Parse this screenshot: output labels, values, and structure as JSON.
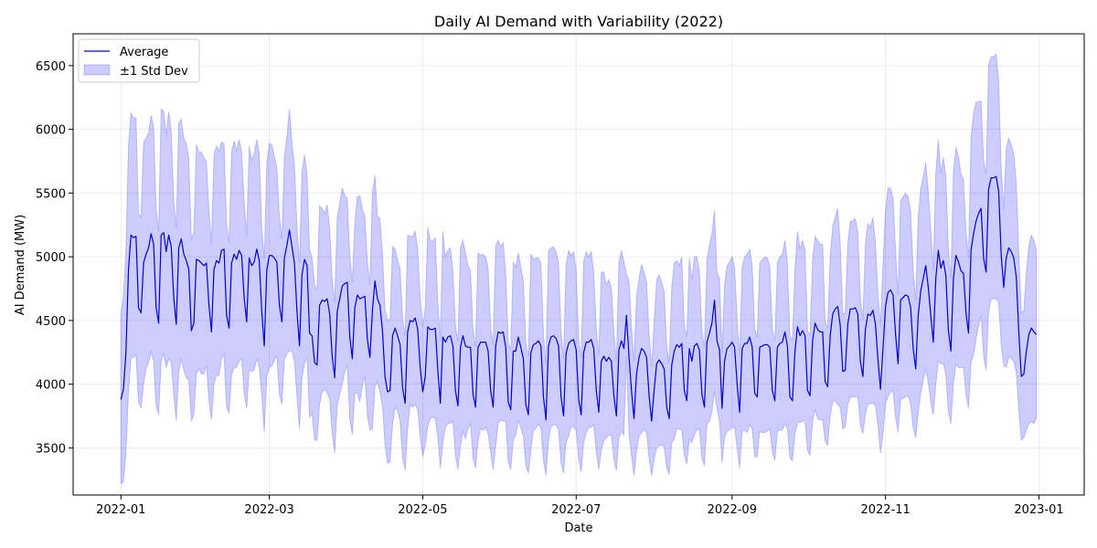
{
  "chart_data": {
    "type": "line",
    "title": "Daily AI Demand with Variability (2022)",
    "xlabel": "Date",
    "ylabel": "AI Demand (MW)",
    "x_start": "2022-01-01",
    "x_end": "2022-12-31",
    "xlim": [
      "2021-12-13",
      "2023-01-19"
    ],
    "ylim": [
      3130,
      6750
    ],
    "xticks": [
      "2022-01",
      "2022-03",
      "2022-05",
      "2022-07",
      "2022-09",
      "2022-11",
      "2023-01"
    ],
    "yticks": [
      3500,
      4000,
      4500,
      5000,
      5500,
      6000,
      6500
    ],
    "grid": true,
    "legend_position": "top-left",
    "series": [
      {
        "name": "Average",
        "kind": "line",
        "color": "#0000cc",
        "values": [
          3880,
          3960,
          4250,
          4900,
          5170,
          5150,
          5160,
          4600,
          4560,
          4950,
          5020,
          5070,
          5180,
          5100,
          4600,
          4480,
          5170,
          5190,
          5040,
          5170,
          5080,
          4680,
          4470,
          5070,
          5140,
          5020,
          4970,
          4900,
          4420,
          4480,
          4980,
          4970,
          4950,
          4930,
          4950,
          4620,
          4410,
          4900,
          4970,
          4950,
          5050,
          5060,
          4540,
          4440,
          4950,
          5020,
          4980,
          5050,
          5010,
          4680,
          4490,
          4990,
          4930,
          4960,
          5060,
          4970,
          4570,
          4300,
          4900,
          5010,
          5010,
          4990,
          4960,
          4620,
          4490,
          4990,
          5090,
          5210,
          5080,
          4950,
          4570,
          4300,
          4860,
          4980,
          4930,
          4400,
          4380,
          4170,
          4150,
          4620,
          4660,
          4650,
          4670,
          4550,
          4220,
          4050,
          4570,
          4670,
          4770,
          4790,
          4800,
          4370,
          4200,
          4600,
          4700,
          4670,
          4680,
          4690,
          4350,
          4210,
          4580,
          4810,
          4670,
          4620,
          4420,
          4060,
          3940,
          3950,
          4380,
          4440,
          4380,
          4310,
          3970,
          3850,
          4410,
          4500,
          4490,
          4520,
          4430,
          4130,
          3940,
          4060,
          4450,
          4430,
          4430,
          4440,
          4110,
          3850,
          4370,
          4330,
          4370,
          4380,
          4300,
          3950,
          3830,
          4290,
          4380,
          4300,
          4290,
          4290,
          3920,
          3820,
          4290,
          4330,
          4330,
          4330,
          4260,
          3950,
          3820,
          4300,
          4410,
          4400,
          4410,
          4290,
          3860,
          3800,
          4260,
          4260,
          4370,
          4290,
          4200,
          3840,
          3760,
          4250,
          4310,
          4320,
          4340,
          4300,
          3900,
          3720,
          4300,
          4370,
          4380,
          4360,
          4300,
          3900,
          3750,
          4240,
          4320,
          4340,
          4350,
          4270,
          3880,
          3760,
          4250,
          4330,
          4330,
          4350,
          4280,
          3950,
          3780,
          4180,
          4220,
          4180,
          4210,
          4180,
          3910,
          3750,
          4270,
          4340,
          4280,
          4540,
          4220,
          3950,
          3730,
          4080,
          4210,
          4280,
          4260,
          4210,
          3910,
          3710,
          3950,
          4160,
          4190,
          4160,
          4120,
          3820,
          3730,
          4150,
          4260,
          4310,
          4290,
          4320,
          3950,
          3870,
          4280,
          4180,
          4300,
          4320,
          4270,
          3920,
          3820,
          4330,
          4400,
          4480,
          4660,
          4340,
          4270,
          3810,
          4180,
          4280,
          4300,
          4330,
          4290,
          4000,
          3780,
          4280,
          4320,
          4320,
          4370,
          4290,
          3930,
          3900,
          4290,
          4300,
          4310,
          4310,
          4290,
          3950,
          3870,
          4290,
          4320,
          4330,
          4410,
          4300,
          3900,
          3870,
          4260,
          4450,
          4380,
          4420,
          4380,
          3950,
          3910,
          4340,
          4480,
          4430,
          4410,
          4410,
          4020,
          3980,
          4380,
          4550,
          4590,
          4610,
          4460,
          4100,
          4110,
          4470,
          4590,
          4590,
          4600,
          4550,
          4180,
          4060,
          4430,
          4550,
          4540,
          4580,
          4470,
          4190,
          3960,
          4280,
          4610,
          4720,
          4740,
          4700,
          4390,
          4160,
          4660,
          4680,
          4700,
          4690,
          4600,
          4280,
          4120,
          4540,
          4730,
          4830,
          4930,
          4760,
          4540,
          4330,
          4830,
          5050,
          4910,
          4970,
          4850,
          4420,
          4260,
          4830,
          5010,
          4960,
          4890,
          4870,
          4560,
          4400,
          5050,
          5180,
          5280,
          5340,
          5380,
          4990,
          4880,
          5530,
          5620,
          5620,
          5630,
          5510,
          5010,
          4760,
          4990,
          5070,
          5040,
          4990,
          4840,
          4410,
          4060,
          4080,
          4260,
          4390,
          4440,
          4410,
          4390
        ]
      },
      {
        "name": "±1 Std Dev",
        "kind": "band",
        "color": "#0000ff",
        "upper": [
          4550,
          4700,
          5050,
          5870,
          6130,
          6090,
          6090,
          5340,
          5310,
          5900,
          5930,
          5970,
          6110,
          6020,
          5370,
          5200,
          6160,
          6140,
          5950,
          6140,
          5990,
          5440,
          5230,
          6050,
          6080,
          5930,
          5890,
          5770,
          5130,
          5200,
          5880,
          5820,
          5820,
          5780,
          5750,
          5370,
          5100,
          5800,
          5870,
          5830,
          5900,
          5890,
          5260,
          5110,
          5830,
          5910,
          5830,
          5920,
          5820,
          5430,
          5170,
          5870,
          5760,
          5810,
          5920,
          5810,
          5230,
          4980,
          5740,
          5890,
          5880,
          5790,
          5700,
          5320,
          5140,
          5790,
          5940,
          6160,
          5900,
          5720,
          5240,
          4950,
          5670,
          5800,
          5650,
          5060,
          4990,
          4780,
          4740,
          5400,
          5380,
          5340,
          5410,
          5220,
          4830,
          4640,
          5310,
          5420,
          5540,
          5480,
          5460,
          5010,
          4800,
          5270,
          5470,
          5480,
          5370,
          5320,
          4950,
          4780,
          5510,
          5640,
          5320,
          5300,
          5010,
          4590,
          4500,
          4510,
          5080,
          5060,
          4970,
          4910,
          4520,
          4380,
          5170,
          5160,
          5160,
          5200,
          5060,
          4680,
          4450,
          4600,
          5230,
          5130,
          5120,
          5150,
          4640,
          4360,
          5200,
          5000,
          5050,
          5070,
          4890,
          4460,
          4330,
          5070,
          5130,
          5030,
          4930,
          4890,
          4420,
          4300,
          5030,
          5010,
          5020,
          5000,
          4910,
          4440,
          4310,
          5090,
          5130,
          5080,
          5110,
          4870,
          4330,
          4270,
          4960,
          4920,
          5030,
          4920,
          4810,
          4320,
          4220,
          5020,
          4980,
          4990,
          4990,
          4950,
          4400,
          4160,
          5050,
          5070,
          5080,
          5040,
          4960,
          4420,
          4200,
          4940,
          5050,
          5010,
          5040,
          4900,
          4350,
          4210,
          4960,
          5040,
          5000,
          5040,
          4880,
          4430,
          4230,
          4880,
          4880,
          4780,
          4820,
          4760,
          4410,
          4180,
          4960,
          5050,
          4960,
          4860,
          4820,
          4460,
          4180,
          4690,
          4830,
          4940,
          4880,
          4800,
          4400,
          4140,
          4490,
          4820,
          4860,
          4800,
          4730,
          4300,
          4170,
          4760,
          4950,
          4970,
          4930,
          5000,
          4460,
          4370,
          4990,
          4820,
          5000,
          5000,
          4890,
          4420,
          4280,
          4980,
          5090,
          5180,
          5370,
          4880,
          4830,
          4240,
          4780,
          4930,
          4960,
          5000,
          4920,
          4500,
          4220,
          4930,
          5000,
          5020,
          5060,
          4930,
          4430,
          4370,
          4950,
          4980,
          5000,
          4990,
          4930,
          4430,
          4340,
          4950,
          5000,
          5020,
          5130,
          4950,
          4380,
          4340,
          4910,
          5200,
          5060,
          5130,
          5050,
          4420,
          4380,
          4970,
          5160,
          5130,
          5100,
          5100,
          4490,
          4440,
          5010,
          5240,
          5310,
          5380,
          5100,
          4550,
          4560,
          5100,
          5280,
          5280,
          5300,
          5200,
          4680,
          4510,
          5100,
          5260,
          5230,
          5310,
          5110,
          4710,
          4460,
          4950,
          5370,
          5540,
          5540,
          5460,
          5040,
          4700,
          5440,
          5470,
          5500,
          5470,
          5360,
          4900,
          4660,
          5310,
          5530,
          5630,
          5740,
          5510,
          5220,
          4900,
          5660,
          5920,
          5660,
          5780,
          5630,
          5060,
          4830,
          5660,
          5860,
          5790,
          5650,
          5610,
          5200,
          4990,
          5930,
          6130,
          6210,
          6220,
          6220,
          5760,
          5650,
          6500,
          6570,
          6570,
          6590,
          6380,
          5710,
          5370,
          5850,
          5930,
          5880,
          5800,
          5590,
          5030,
          4560,
          4580,
          4880,
          5090,
          5170,
          5130,
          5050
        ],
        "lower": [
          3220,
          3230,
          3460,
          3930,
          4210,
          4210,
          4230,
          3860,
          3810,
          4000,
          4120,
          4170,
          4250,
          4180,
          3830,
          3760,
          4180,
          4240,
          4130,
          4200,
          4170,
          3920,
          3710,
          4090,
          4200,
          4110,
          4050,
          4030,
          3710,
          3760,
          4080,
          4120,
          4080,
          4080,
          4150,
          3870,
          3720,
          4000,
          4070,
          4070,
          4200,
          4230,
          3820,
          3770,
          4070,
          4130,
          4130,
          4180,
          4200,
          3930,
          3810,
          4110,
          4100,
          4110,
          4200,
          4130,
          3910,
          3620,
          4060,
          4130,
          4140,
          4190,
          4220,
          3920,
          3840,
          4190,
          4240,
          4260,
          4260,
          4180,
          3900,
          3650,
          4050,
          4160,
          4210,
          3740,
          3770,
          3560,
          3560,
          3840,
          3940,
          3960,
          3930,
          3880,
          3610,
          3460,
          3830,
          3920,
          4000,
          4100,
          4140,
          3730,
          3600,
          3930,
          3930,
          3860,
          3990,
          4060,
          3750,
          3640,
          3650,
          3980,
          4020,
          3940,
          3830,
          3530,
          3380,
          3390,
          3680,
          3820,
          3790,
          3710,
          3420,
          3320,
          3650,
          3840,
          3820,
          3840,
          3800,
          3580,
          3430,
          3520,
          3670,
          3730,
          3740,
          3730,
          3580,
          3340,
          3540,
          3660,
          3690,
          3690,
          3710,
          3440,
          3330,
          3510,
          3630,
          3570,
          3650,
          3690,
          3420,
          3340,
          3550,
          3650,
          3640,
          3660,
          3610,
          3460,
          3330,
          3510,
          3690,
          3720,
          3710,
          3710,
          3390,
          3330,
          3560,
          3600,
          3710,
          3660,
          3590,
          3360,
          3300,
          3480,
          3640,
          3650,
          3690,
          3650,
          3400,
          3280,
          3550,
          3670,
          3680,
          3680,
          3640,
          3380,
          3300,
          3540,
          3590,
          3670,
          3660,
          3640,
          3410,
          3310,
          3540,
          3620,
          3660,
          3660,
          3680,
          3470,
          3330,
          3480,
          3560,
          3580,
          3600,
          3600,
          3410,
          3320,
          3580,
          3630,
          3600,
          4220,
          3620,
          3440,
          3280,
          3470,
          3590,
          3620,
          3640,
          3620,
          3420,
          3280,
          3410,
          3500,
          3520,
          3520,
          3510,
          3340,
          3290,
          3540,
          3570,
          3650,
          3650,
          3640,
          3440,
          3370,
          3570,
          3540,
          3600,
          3640,
          3650,
          3420,
          3360,
          3680,
          3710,
          3780,
          3950,
          3800,
          3710,
          3380,
          3580,
          3630,
          3640,
          3660,
          3660,
          3500,
          3340,
          3630,
          3640,
          3620,
          3680,
          3650,
          3430,
          3430,
          3630,
          3620,
          3620,
          3630,
          3650,
          3470,
          3400,
          3630,
          3640,
          3640,
          3690,
          3650,
          3420,
          3400,
          3610,
          3700,
          3700,
          3710,
          3710,
          3480,
          3440,
          3710,
          3800,
          3730,
          3720,
          3720,
          3550,
          3520,
          3750,
          3860,
          3870,
          3840,
          3820,
          3650,
          3660,
          3840,
          3900,
          3900,
          3900,
          3900,
          3680,
          3610,
          3760,
          3840,
          3850,
          3850,
          3830,
          3670,
          3460,
          3610,
          3850,
          3900,
          3940,
          3940,
          3740,
          3620,
          3880,
          3890,
          3900,
          3910,
          3840,
          3660,
          3580,
          3770,
          3930,
          4030,
          4120,
          4010,
          3860,
          3760,
          4000,
          4180,
          4160,
          4160,
          4070,
          3780,
          3690,
          4000,
          4160,
          4130,
          4130,
          4130,
          3920,
          3810,
          4170,
          4230,
          4350,
          4460,
          4540,
          4220,
          4110,
          4560,
          4670,
          4670,
          4670,
          4640,
          4310,
          4150,
          4130,
          4210,
          4200,
          4180,
          4090,
          3790,
          3560,
          3580,
          3640,
          3690,
          3710,
          3690,
          3730
        ]
      }
    ]
  }
}
